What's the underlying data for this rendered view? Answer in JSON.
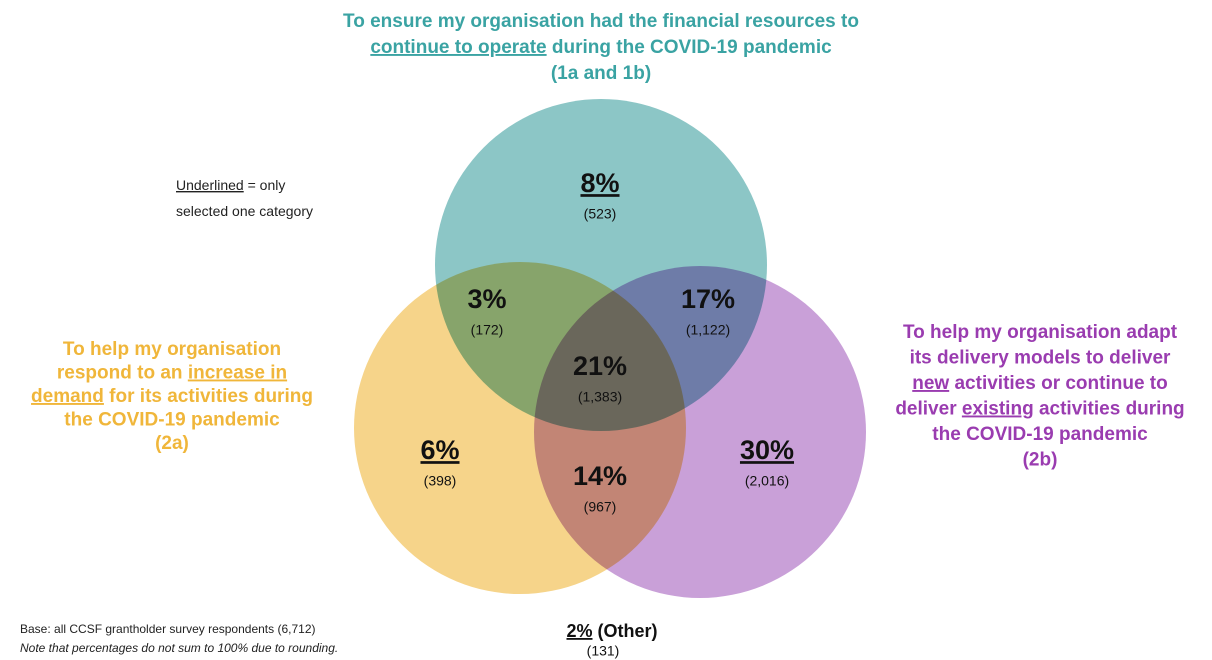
{
  "top_label": {
    "lines": [
      [
        {
          "text": "To ensure my organisation had the financial resources to",
          "underline": false
        }
      ],
      [
        {
          "text": "continue to operate",
          "underline": true
        },
        {
          "text": " during the COVID-19 pandemic",
          "underline": false
        }
      ],
      [
        {
          "text": "(1a and 1b)",
          "underline": false
        }
      ]
    ]
  },
  "left_label": {
    "lines": [
      [
        {
          "text": "To help my organisation",
          "underline": false
        }
      ],
      [
        {
          "text": "respond to an ",
          "underline": false
        },
        {
          "text": "increase in",
          "underline": true
        }
      ],
      [
        {
          "text": "demand",
          "underline": true
        },
        {
          "text": " for its activities during",
          "underline": false
        }
      ],
      [
        {
          "text": "the COVID-19 pandemic",
          "underline": false
        }
      ],
      [
        {
          "text": "(2a)",
          "underline": false
        }
      ]
    ]
  },
  "right_label": {
    "lines": [
      [
        {
          "text": "To help my organisation adapt",
          "underline": false
        }
      ],
      [
        {
          "text": "its delivery models to deliver",
          "underline": false
        }
      ],
      [
        {
          "text": "new",
          "underline": true
        },
        {
          "text": " activities or continue to",
          "underline": false
        }
      ],
      [
        {
          "text": "deliver ",
          "underline": false
        },
        {
          "text": "existing",
          "underline": true
        },
        {
          "text": " activities during",
          "underline": false
        }
      ],
      [
        {
          "text": "the COVID-19 pandemic",
          "underline": false
        }
      ],
      [
        {
          "text": "(2b)",
          "underline": false
        }
      ]
    ]
  },
  "key": {
    "lines": [
      [
        {
          "text": "Underlined",
          "underline": true
        },
        {
          "text": " = only",
          "underline": false
        }
      ],
      [
        {
          "text": "selected one category",
          "underline": false
        }
      ]
    ]
  },
  "regions": [
    {
      "percent": "8%",
      "count": "(523)",
      "underline": true
    },
    {
      "percent": "3%",
      "count": "(172)",
      "underline": false
    },
    {
      "percent": "17%",
      "count": "(1,122)",
      "underline": false
    },
    {
      "percent": "21%",
      "count": "(1,383)",
      "underline": false
    },
    {
      "percent": "6%",
      "count": "(398)",
      "underline": true
    },
    {
      "percent": "14%",
      "count": "(967)",
      "underline": false
    },
    {
      "percent": "30%",
      "count": "(2,016)",
      "underline": true
    }
  ],
  "other": {
    "percent": "2%",
    "label": "(Other)",
    "count": "(131)"
  },
  "footnotes": {
    "base": "Base: all CCSF grantholder survey respondents (6,712)",
    "note": "Note that percentages do not sum to 100% due to rounding."
  }
}
